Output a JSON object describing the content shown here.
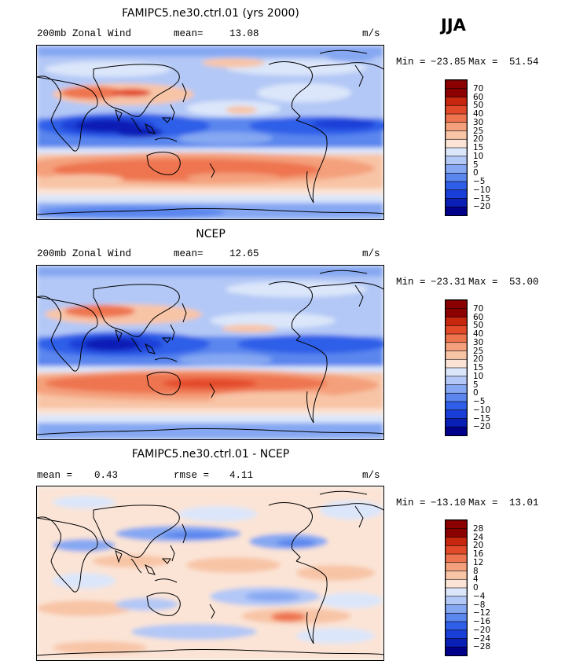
{
  "season": "JJA",
  "units": "m/s",
  "panels": [
    {
      "title": "FAMIPC5.ne30.ctrl.01 (yrs 2000)",
      "left_label": "200mb Zonal Wind",
      "stat_label": "mean=",
      "stat_value": "13.08",
      "min_label": "Min =",
      "min_value": "−23.85",
      "max_label": "Max =",
      "max_value": "51.54",
      "colorbar_ticks": [
        "70",
        "60",
        "50",
        "40",
        "30",
        "25",
        "20",
        "15",
        "10",
        "5",
        "0",
        "−5",
        "−10",
        "−15",
        "−20"
      ]
    },
    {
      "title": "NCEP",
      "left_label": "200mb Zonal Wind",
      "stat_label": "mean=",
      "stat_value": "12.65",
      "min_label": "Min =",
      "min_value": "−23.31",
      "max_label": "Max =",
      "max_value": "53.00",
      "colorbar_ticks": [
        "70",
        "60",
        "50",
        "40",
        "30",
        "25",
        "20",
        "15",
        "10",
        "5",
        "0",
        "−5",
        "−10",
        "−15",
        "−20"
      ]
    },
    {
      "title": "FAMIPC5.ne30.ctrl.01 - NCEP",
      "left_label": "mean =",
      "left_value": "0.43",
      "stat_label": "rmse =",
      "stat_value": "4.11",
      "min_label": "Min =",
      "min_value": "−13.10",
      "max_label": "Max =",
      "max_value": "13.01",
      "colorbar_ticks": [
        "28",
        "24",
        "20",
        "16",
        "12",
        "8",
        "4",
        "0",
        "−4",
        "−8",
        "−12",
        "−16",
        "−20",
        "−24",
        "−28"
      ]
    }
  ],
  "chart_data": [
    {
      "type": "heatmap",
      "variable": "200mb Zonal Wind",
      "season": "JJA",
      "units": "m/s",
      "mean": 13.08,
      "min": -23.85,
      "max": 51.54,
      "contour_levels": [
        -20,
        -15,
        -10,
        -5,
        0,
        5,
        10,
        15,
        20,
        25,
        30,
        40,
        50,
        60,
        70
      ],
      "colors": [
        "#00008b",
        "#0a1fb5",
        "#1a3fd8",
        "#2f5fe8",
        "#5a86ee",
        "#86a8f2",
        "#b3c8f6",
        "#dbe6fa",
        "#fbe4d6",
        "#f8c4a6",
        "#f4a07c",
        "#ee7450",
        "#e34a2a",
        "#c7260f",
        "#8b0000"
      ]
    },
    {
      "type": "heatmap",
      "variable": "200mb Zonal Wind",
      "season": "JJA",
      "units": "m/s",
      "mean": 12.65,
      "min": -23.31,
      "max": 53.0,
      "contour_levels": [
        -20,
        -15,
        -10,
        -5,
        0,
        5,
        10,
        15,
        20,
        25,
        30,
        40,
        50,
        60,
        70
      ],
      "colors": [
        "#00008b",
        "#0a1fb5",
        "#1a3fd8",
        "#2f5fe8",
        "#5a86ee",
        "#86a8f2",
        "#b3c8f6",
        "#dbe6fa",
        "#fbe4d6",
        "#f8c4a6",
        "#f4a07c",
        "#ee7450",
        "#e34a2a",
        "#c7260f",
        "#8b0000"
      ]
    },
    {
      "type": "heatmap",
      "variable": "200mb Zonal Wind difference",
      "season": "JJA",
      "units": "m/s",
      "mean": 0.43,
      "rmse": 4.11,
      "min": -13.1,
      "max": 13.01,
      "contour_levels": [
        -28,
        -24,
        -20,
        -16,
        -12,
        -8,
        -4,
        0,
        4,
        8,
        12,
        16,
        20,
        24,
        28
      ],
      "colors": [
        "#00008b",
        "#0a1fb5",
        "#1a3fd8",
        "#2f5fe8",
        "#5a86ee",
        "#86a8f2",
        "#b3c8f6",
        "#dbe6fa",
        "#fbe4d6",
        "#f8c4a6",
        "#f4a07c",
        "#ee7450",
        "#e34a2a",
        "#c7260f",
        "#8b0000"
      ]
    }
  ]
}
